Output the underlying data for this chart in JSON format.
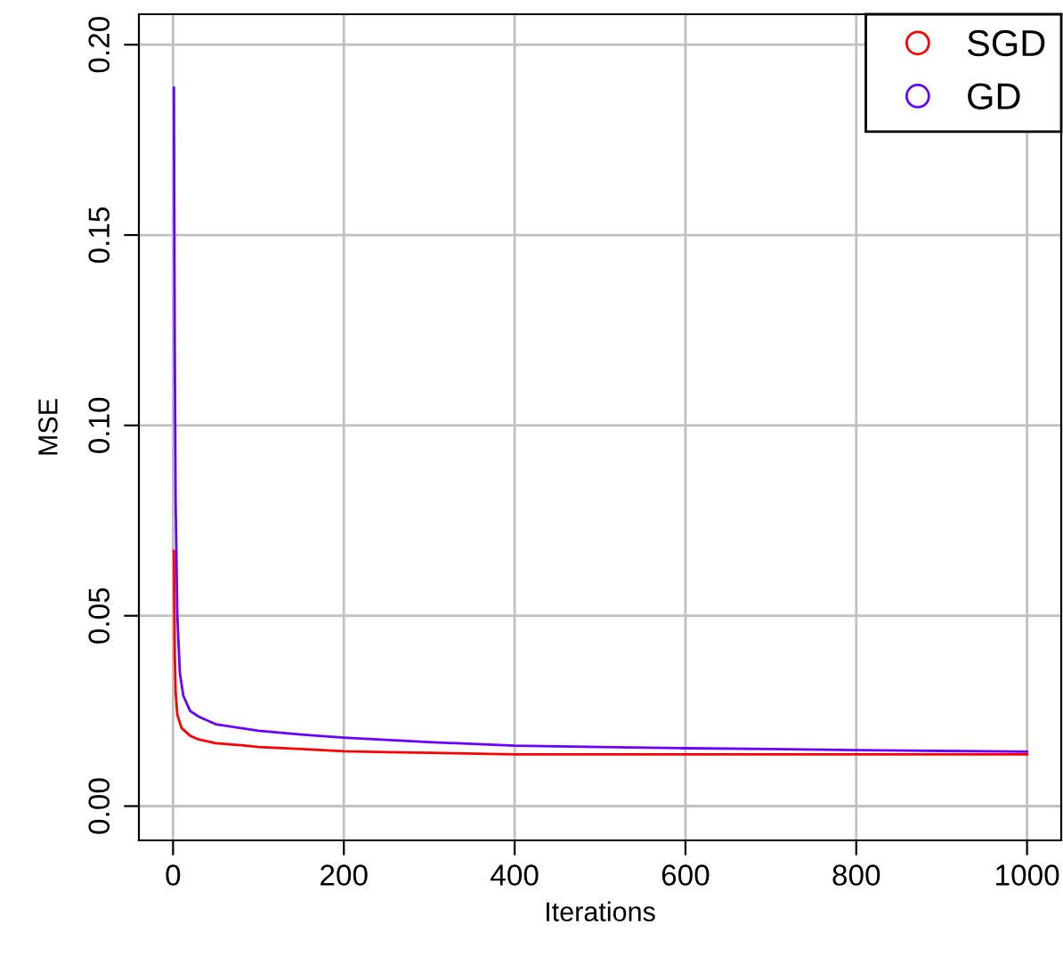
{
  "chart_data": {
    "type": "line",
    "xlabel": "Iterations",
    "ylabel": "MSE",
    "xlim": [
      -40,
      1040
    ],
    "ylim": [
      -0.009,
      0.208
    ],
    "xticks": [
      0,
      200,
      400,
      600,
      800,
      1000
    ],
    "yticks": [
      {
        "value": 0,
        "label": "0.00"
      },
      0.05,
      {
        "value": 0.1,
        "label": "0.10"
      },
      0.15,
      {
        "value": 0.2,
        "label": "0.20"
      }
    ],
    "grid": true,
    "legend": "top right",
    "line_style": "solid",
    "series": [
      {
        "name": "SGD",
        "color": "#ff0000",
        "x": [
          1,
          2,
          3,
          5,
          10,
          20,
          30,
          50,
          80,
          100,
          150,
          200,
          250,
          300,
          400,
          500,
          600,
          700,
          800,
          900,
          1000
        ],
        "values": [
          0.067,
          0.04,
          0.03,
          0.024,
          0.0205,
          0.0185,
          0.0175,
          0.0165,
          0.016,
          0.0155,
          0.015,
          0.0144,
          0.0142,
          0.014,
          0.0136,
          0.0136,
          0.0136,
          0.0136,
          0.0136,
          0.0136,
          0.0136
        ]
      },
      {
        "name": "GD",
        "color": "#6a00ff",
        "x": [
          1,
          2,
          3,
          5,
          8,
          12,
          20,
          30,
          50,
          100,
          150,
          200,
          300,
          400,
          500,
          600,
          700,
          800,
          900,
          1000
        ],
        "values": [
          0.1887,
          0.12,
          0.08,
          0.05,
          0.035,
          0.029,
          0.025,
          0.0235,
          0.0215,
          0.0198,
          0.0188,
          0.018,
          0.0168,
          0.0159,
          0.0155,
          0.0152,
          0.015,
          0.0147,
          0.0145,
          0.0143
        ]
      }
    ]
  }
}
